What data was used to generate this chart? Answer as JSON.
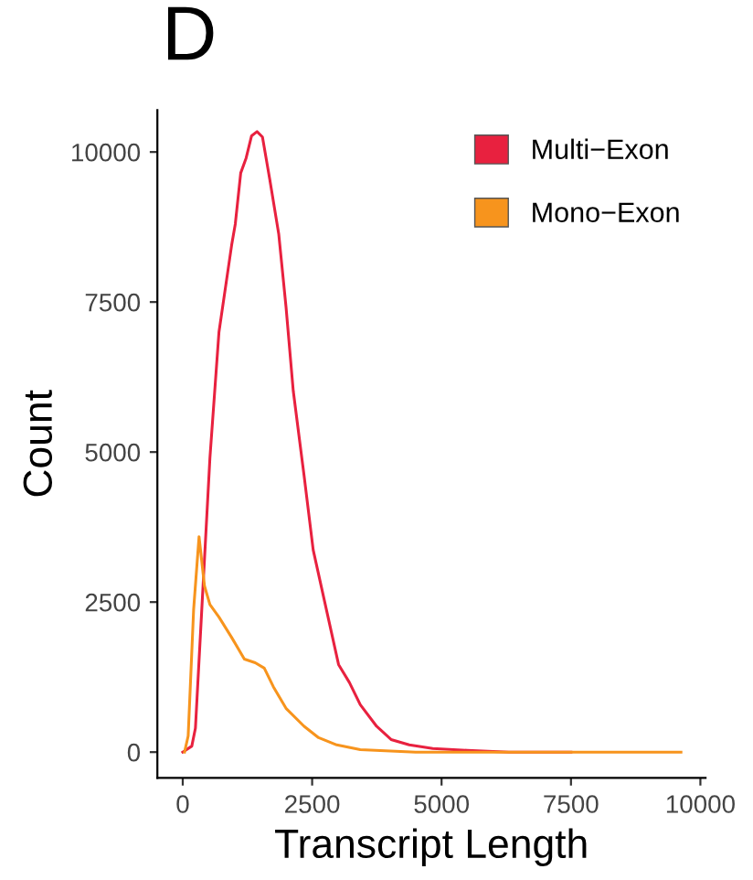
{
  "chart_data": {
    "type": "line",
    "title": "D",
    "xlabel": "Transcript Length",
    "ylabel": "Count",
    "xlim": [
      -490,
      10100
    ],
    "ylim": [
      -430,
      10700
    ],
    "xticks": [
      0,
      2500,
      5000,
      7500,
      10000
    ],
    "yticks": [
      0,
      2500,
      5000,
      7500,
      10000
    ],
    "grid": false,
    "legend": "top right",
    "marker": "none",
    "line_style": "solid",
    "series": [
      {
        "name": "Multi−Exon",
        "color": "#e8213f",
        "x": [
          0,
          175,
          245,
          525,
          700,
          945,
          1015,
          1120,
          1225,
          1330,
          1435,
          1540,
          1680,
          1855,
          1995,
          2135,
          2345,
          2520,
          2730,
          3010,
          3220,
          3430,
          3745,
          4025,
          4375,
          4830,
          5495,
          6300,
          7500
        ],
        "values": [
          0,
          100,
          400,
          4900,
          7000,
          8450,
          8800,
          9650,
          9900,
          10270,
          10340,
          10250,
          9550,
          8630,
          7420,
          6020,
          4600,
          3370,
          2550,
          1460,
          1160,
          790,
          430,
          210,
          120,
          60,
          30,
          0,
          0
        ]
      },
      {
        "name": "Mono−Exon",
        "color": "#f7941d",
        "x": [
          35,
          105,
          210,
          315,
          420,
          525,
          700,
          945,
          1190,
          1400,
          1575,
          1750,
          1995,
          2345,
          2625,
          2975,
          3430,
          4500,
          6000,
          8000,
          9625
        ],
        "values": [
          0,
          270,
          2370,
          3590,
          2770,
          2460,
          2250,
          1910,
          1550,
          1490,
          1400,
          1090,
          730,
          430,
          240,
          120,
          40,
          0,
          0,
          0,
          0
        ]
      }
    ]
  }
}
